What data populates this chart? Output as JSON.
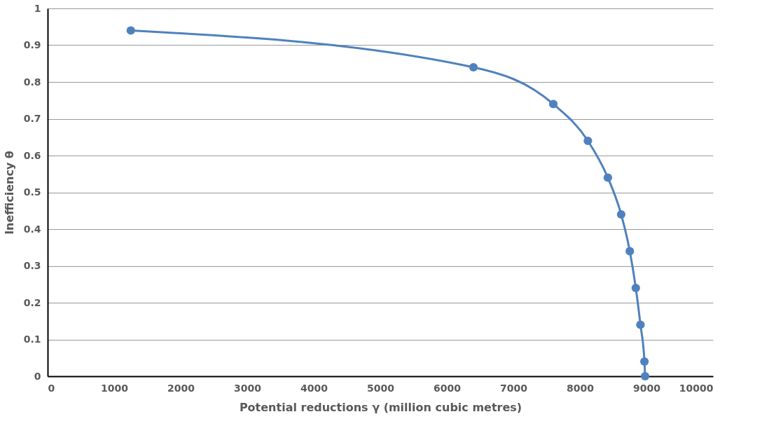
{
  "chart_data": {
    "type": "line",
    "xlabel": "Potential reductions γ  (million cubic metres)",
    "ylabel": "Inefficiency θ",
    "x": [
      1250,
      6400,
      7600,
      8120,
      8420,
      8620,
      8750,
      8840,
      8910,
      8970,
      8980
    ],
    "series": [
      {
        "color": "#4f81bd",
        "values": [
          0.94,
          0.84,
          0.74,
          0.64,
          0.54,
          0.44,
          0.34,
          0.24,
          0.14,
          0.04,
          0
        ]
      }
    ],
    "xlim": [
      0,
      10000
    ],
    "xticks": [
      0,
      1000,
      2000,
      3000,
      4000,
      5000,
      6000,
      7000,
      8000,
      9000,
      10000
    ],
    "ylim": [
      0,
      1
    ],
    "yticks": [
      0,
      0.1,
      0.2,
      0.3,
      0.4,
      0.5,
      0.6,
      0.7,
      0.8,
      0.9,
      1
    ],
    "grid": "y",
    "marker": "circle",
    "legend": false
  }
}
